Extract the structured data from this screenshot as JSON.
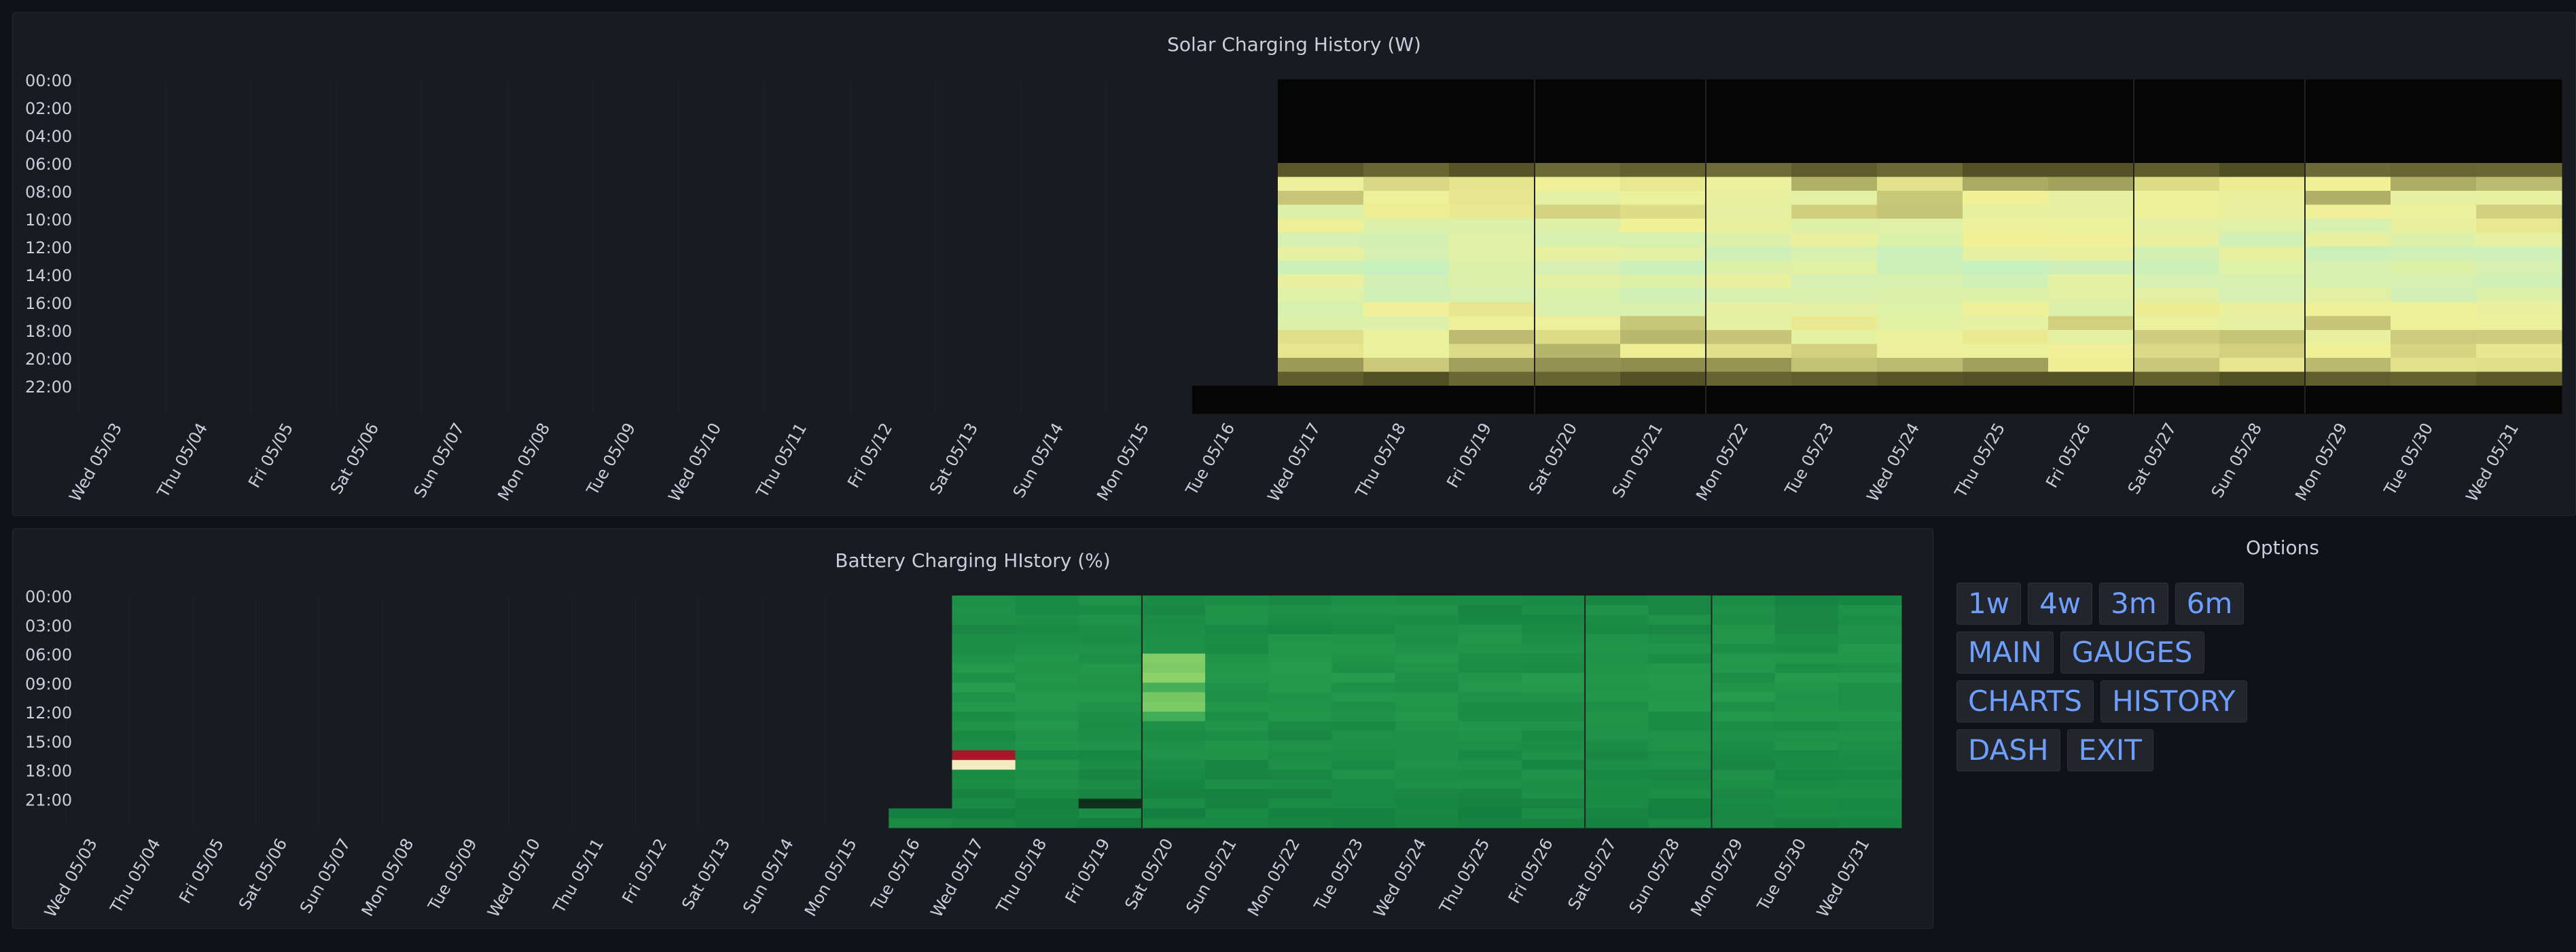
{
  "solar_panel": {
    "title": "Solar Charging History (W)"
  },
  "battery_panel": {
    "title": "Battery Charging HIstory (%)"
  },
  "options": {
    "title": "Options",
    "buttons": [
      [
        "1w",
        "4w",
        "3m",
        "6m"
      ],
      [
        "MAIN",
        "GAUGES"
      ],
      [
        "CHARTS",
        "HISTORY"
      ],
      [
        "DASH",
        "EXIT"
      ]
    ]
  },
  "chart_data": [
    {
      "type": "heatmap",
      "title": "Solar Charging History (W)",
      "x_categories": [
        "Wed 05/03",
        "Thu 05/04",
        "Fri 05/05",
        "Sat 05/06",
        "Sun 05/07",
        "Mon 05/08",
        "Tue 05/09",
        "Wed 05/10",
        "Thu 05/11",
        "Fri 05/12",
        "Sat 05/13",
        "Sun 05/14",
        "Mon 05/15",
        "Tue 05/16",
        "Wed 05/17",
        "Thu 05/18",
        "Fri 05/19",
        "Sat 05/20",
        "Sun 05/21",
        "Mon 05/22",
        "Tue 05/23",
        "Wed 05/24",
        "Thu 05/25",
        "Fri 05/26",
        "Sat 05/27",
        "Sun 05/28",
        "Mon 05/29",
        "Tue 05/30",
        "Wed 05/31"
      ],
      "y_tick_labels": [
        "00:00",
        "02:00",
        "04:00",
        "06:00",
        "08:00",
        "10:00",
        "12:00",
        "14:00",
        "16:00",
        "18:00",
        "20:00",
        "22:00"
      ],
      "hours_per_day": 24,
      "data_start_day_index": 13.0,
      "full_data_start_day_index": 14.0,
      "data_end_day_index": 28.0,
      "color_scale": "black-yellow-lightgreen",
      "grid": false,
      "legend": "none"
    },
    {
      "type": "heatmap",
      "title": "Battery Charging HIstory (%)",
      "x_categories": [
        "Wed 05/03",
        "Thu 05/04",
        "Fri 05/05",
        "Sat 05/06",
        "Sun 05/07",
        "Mon 05/08",
        "Tue 05/09",
        "Wed 05/10",
        "Thu 05/11",
        "Fri 05/12",
        "Sat 05/13",
        "Sun 05/14",
        "Mon 05/15",
        "Tue 05/16",
        "Wed 05/17",
        "Thu 05/18",
        "Fri 05/19",
        "Sat 05/20",
        "Sun 05/21",
        "Mon 05/22",
        "Tue 05/23",
        "Wed 05/24",
        "Thu 05/25",
        "Fri 05/26",
        "Sat 05/27",
        "Sun 05/28",
        "Mon 05/29",
        "Tue 05/30",
        "Wed 05/31"
      ],
      "y_tick_labels": [
        "00:00",
        "03:00",
        "06:00",
        "09:00",
        "12:00",
        "15:00",
        "18:00",
        "21:00"
      ],
      "hours_per_day": 24,
      "data_start_day_index": 13.0,
      "full_data_start_day_index": 14.0,
      "data_end_day_index": 28.0,
      "color_scale": "red-cream-green",
      "grid": false,
      "legend": "none"
    }
  ]
}
